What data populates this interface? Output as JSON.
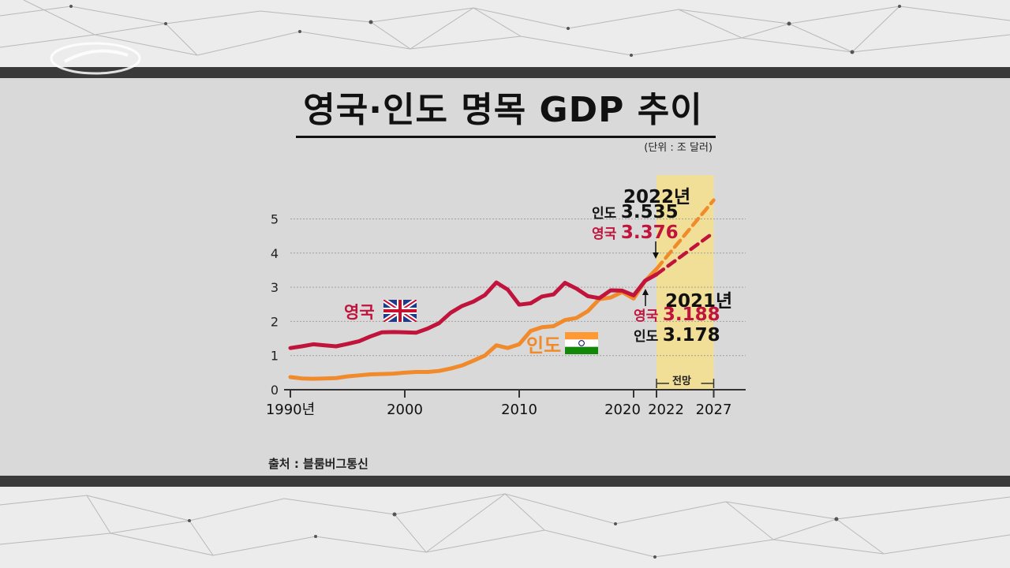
{
  "title": "영국·인도 명목 GDP 추이",
  "unit": "(단위 : 조 달러)",
  "source": "출처 : 블룸버그통신",
  "colors": {
    "uk": "#c0143c",
    "india": "#f08a2a",
    "forecast_bg": "#f4df8f"
  },
  "legend": {
    "uk": "영국",
    "india": "인도"
  },
  "annotations": {
    "y2022": {
      "year": "2022년",
      "india_label": "인도",
      "india_value": "3.535",
      "uk_label": "영국",
      "uk_value": "3.376"
    },
    "y2021": {
      "year": "2021년",
      "uk_label": "영국",
      "uk_value": "3.188",
      "india_label": "인도",
      "india_value": "3.178"
    },
    "forecast": "전망"
  },
  "chart_data": {
    "type": "line",
    "title": "영국·인도 명목 GDP 추이",
    "ylabel": "조 달러",
    "ylim": [
      0,
      5.5
    ],
    "yticks": [
      "0",
      "1",
      "2",
      "3",
      "4",
      "5"
    ],
    "xticks": [
      "1990년",
      "2000",
      "2010",
      "2020",
      "2022",
      "2027"
    ],
    "x": [
      1990,
      1991,
      1992,
      1993,
      1994,
      1995,
      1996,
      1997,
      1998,
      1999,
      2000,
      2001,
      2002,
      2003,
      2004,
      2005,
      2006,
      2007,
      2008,
      2009,
      2010,
      2011,
      2012,
      2013,
      2014,
      2015,
      2016,
      2017,
      2018,
      2019,
      2020,
      2021,
      2022
    ],
    "series": [
      {
        "name": "영국",
        "values": [
          1.22,
          1.27,
          1.33,
          1.3,
          1.27,
          1.34,
          1.42,
          1.56,
          1.68,
          1.69,
          1.68,
          1.67,
          1.79,
          1.95,
          2.25,
          2.45,
          2.58,
          2.77,
          3.14,
          2.93,
          2.49,
          2.53,
          2.73,
          2.79,
          3.13,
          2.96,
          2.74,
          2.68,
          2.91,
          2.9,
          2.76,
          3.188,
          3.376
        ],
        "forecast": {
          "x": [
            2022,
            2027
          ],
          "values": [
            3.376,
            4.6
          ]
        }
      },
      {
        "name": "인도",
        "values": [
          0.37,
          0.33,
          0.32,
          0.33,
          0.34,
          0.39,
          0.42,
          0.45,
          0.46,
          0.47,
          0.5,
          0.52,
          0.52,
          0.55,
          0.62,
          0.71,
          0.85,
          1.0,
          1.3,
          1.22,
          1.33,
          1.72,
          1.83,
          1.86,
          2.04,
          2.1,
          2.3,
          2.65,
          2.7,
          2.86,
          2.67,
          3.178,
          3.535
        ],
        "forecast": {
          "x": [
            2022,
            2027
          ],
          "values": [
            3.535,
            5.55
          ]
        }
      }
    ],
    "forecast_range": [
      2022,
      2027
    ]
  }
}
